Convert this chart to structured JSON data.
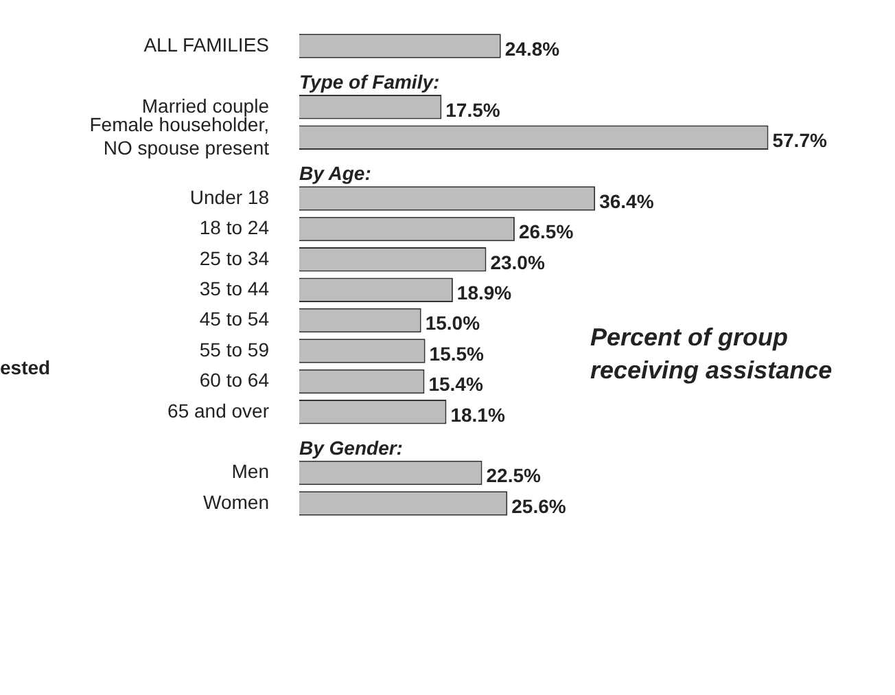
{
  "chart_data": {
    "type": "bar",
    "orientation": "horizontal",
    "categories": [
      "ALL FAMILIES",
      null,
      "Married couple",
      "Female householder, NO spouse present",
      null,
      "Under 18",
      "18 to 24",
      "25 to 34",
      "35 to 44",
      "45 to 54",
      "55 to 59",
      "60 to 64",
      "65 and over",
      null,
      "Men",
      "Women"
    ],
    "values": [
      24.8,
      null,
      17.5,
      57.7,
      null,
      36.4,
      26.5,
      23.0,
      18.9,
      15.0,
      15.5,
      15.4,
      18.1,
      null,
      22.5,
      25.6
    ],
    "value_labels": [
      "24.8%",
      null,
      "17.5%",
      "57.7%",
      null,
      "36.4%",
      "26.5%",
      "23.0%",
      "18.9%",
      "15.0%",
      "15.5%",
      "15.4%",
      "18.1%",
      null,
      "22.5%",
      "25.6%"
    ],
    "color": "#bdbdbd",
    "annotations": [
      "Type of Family:",
      "By Age:",
      "By Gender:",
      "Percent of group receiving assistance",
      "ested"
    ]
  }
}
